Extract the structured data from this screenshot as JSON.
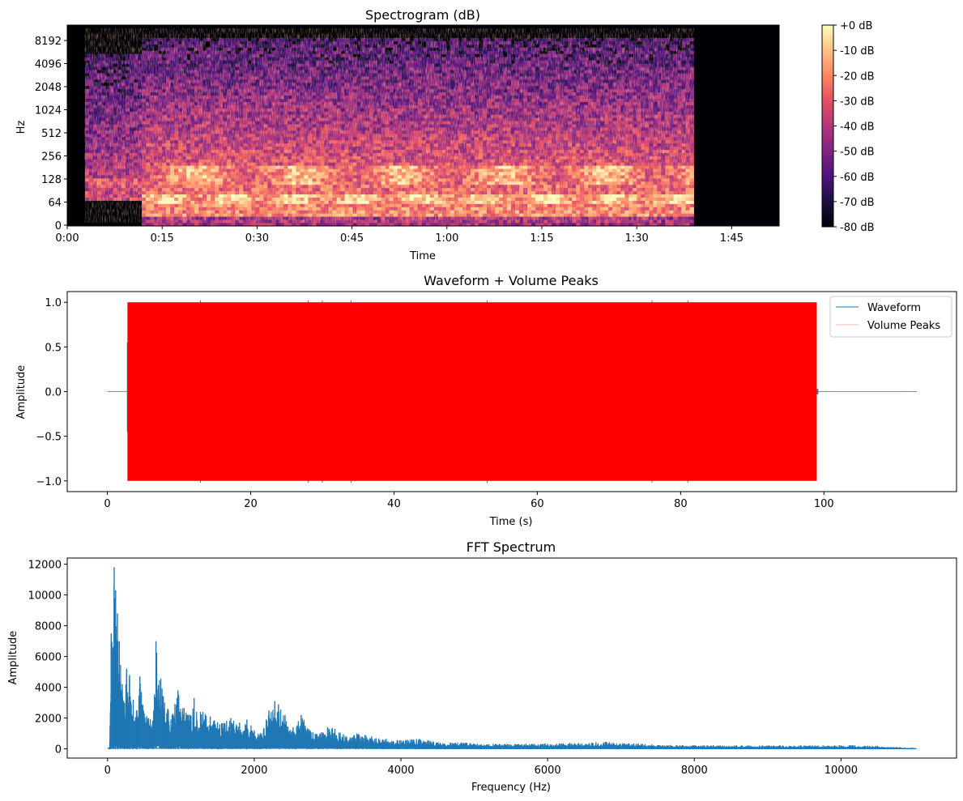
{
  "chart_data": [
    {
      "type": "heatmap",
      "title": "Spectrogram (dB)",
      "xlabel": "Time",
      "ylabel": "Hz",
      "x_ticks": [
        "0:00",
        "0:15",
        "0:30",
        "0:45",
        "1:00",
        "1:15",
        "1:30",
        "1:45"
      ],
      "x_tick_values": [
        0,
        15,
        30,
        45,
        60,
        75,
        90,
        105
      ],
      "xlim": [
        0,
        112.5
      ],
      "y_ticks": [
        "0",
        "64",
        "128",
        "256",
        "512",
        "1024",
        "2048",
        "4096",
        "8192"
      ],
      "y_scale": "symlog",
      "signal_start_s": 2.8,
      "signal_end_s": 99.0,
      "colorbar": {
        "ticks": [
          "+0 dB",
          "-10 dB",
          "-20 dB",
          "-30 dB",
          "-40 dB",
          "-50 dB",
          "-60 dB",
          "-70 dB",
          "-80 dB"
        ],
        "range": [
          -80,
          0
        ],
        "colormap": "magma"
      }
    },
    {
      "type": "line",
      "title": "Waveform + Volume Peaks",
      "xlabel": "Time (s)",
      "ylabel": "Amplitude",
      "xlim": [
        -5.6,
        118.5
      ],
      "ylim": [
        -1.12,
        1.12
      ],
      "x_ticks": [
        "0",
        "20",
        "40",
        "60",
        "80",
        "100"
      ],
      "x_tick_values": [
        0,
        20,
        40,
        60,
        80,
        100
      ],
      "y_ticks": [
        "1.0",
        "0.5",
        "0.0",
        "−0.5",
        "−1.0"
      ],
      "y_tick_values": [
        1.0,
        0.5,
        0.0,
        -0.5,
        -1.0
      ],
      "series": [
        {
          "name": "Waveform",
          "color": "#1f77b4",
          "x": [
            0,
            2.7,
            2.8,
            99.0,
            99.2,
            113.0
          ],
          "amplitude": [
            0.0,
            0.0,
            0.55,
            0.55,
            0.02,
            0.0
          ]
        },
        {
          "name": "Volume Peaks",
          "color": "#ff0000",
          "x_start": 2.8,
          "x_end": 99.0,
          "amplitude": 1.0
        }
      ],
      "legend": {
        "position": "upper-right",
        "labels": [
          "Waveform",
          "Volume Peaks"
        ]
      }
    },
    {
      "type": "line",
      "title": "FFT Spectrum",
      "xlabel": "Frequency (Hz)",
      "ylabel": "Amplitude",
      "xlim": [
        -550,
        11575
      ],
      "ylim": [
        -600,
        12400
      ],
      "x_ticks": [
        "0",
        "2000",
        "4000",
        "6000",
        "8000",
        "10000"
      ],
      "x_tick_values": [
        0,
        2000,
        4000,
        6000,
        8000,
        10000
      ],
      "y_ticks": [
        "0",
        "2000",
        "4000",
        "6000",
        "8000",
        "10000",
        "12000"
      ],
      "y_tick_values": [
        0,
        2000,
        4000,
        6000,
        8000,
        10000,
        12000
      ],
      "color": "#1f77b4",
      "peaks": [
        {
          "f": 30,
          "a": 400
        },
        {
          "f": 50,
          "a": 7500
        },
        {
          "f": 75,
          "a": 6600
        },
        {
          "f": 90,
          "a": 11800
        },
        {
          "f": 110,
          "a": 10300
        },
        {
          "f": 135,
          "a": 8800
        },
        {
          "f": 160,
          "a": 7000
        },
        {
          "f": 200,
          "a": 4200
        },
        {
          "f": 230,
          "a": 3000
        },
        {
          "f": 260,
          "a": 5200
        },
        {
          "f": 300,
          "a": 4800
        },
        {
          "f": 350,
          "a": 3200
        },
        {
          "f": 400,
          "a": 2500
        },
        {
          "f": 440,
          "a": 4700
        },
        {
          "f": 500,
          "a": 2300
        },
        {
          "f": 560,
          "a": 2000
        },
        {
          "f": 620,
          "a": 1800
        },
        {
          "f": 660,
          "a": 7000
        },
        {
          "f": 760,
          "a": 3400
        },
        {
          "f": 820,
          "a": 2600
        },
        {
          "f": 880,
          "a": 2200
        },
        {
          "f": 960,
          "a": 3800
        },
        {
          "f": 1080,
          "a": 2200
        },
        {
          "f": 1180,
          "a": 3300
        },
        {
          "f": 1300,
          "a": 2400
        },
        {
          "f": 1400,
          "a": 2100
        },
        {
          "f": 1530,
          "a": 1600
        },
        {
          "f": 1680,
          "a": 2000
        },
        {
          "f": 1800,
          "a": 1700
        },
        {
          "f": 1900,
          "a": 1900
        },
        {
          "f": 2000,
          "a": 1200
        },
        {
          "f": 2100,
          "a": 1000
        },
        {
          "f": 2200,
          "a": 2500
        },
        {
          "f": 2280,
          "a": 3100
        },
        {
          "f": 2330,
          "a": 2900
        },
        {
          "f": 2420,
          "a": 2200
        },
        {
          "f": 2530,
          "a": 1400
        },
        {
          "f": 2640,
          "a": 2200
        },
        {
          "f": 2760,
          "a": 1200
        },
        {
          "f": 2900,
          "a": 1000
        },
        {
          "f": 3000,
          "a": 1400
        },
        {
          "f": 3100,
          "a": 1300
        },
        {
          "f": 3260,
          "a": 800
        },
        {
          "f": 3400,
          "a": 1000
        },
        {
          "f": 3600,
          "a": 800
        },
        {
          "f": 3800,
          "a": 650
        },
        {
          "f": 4000,
          "a": 550
        },
        {
          "f": 4250,
          "a": 650
        },
        {
          "f": 4500,
          "a": 400
        },
        {
          "f": 4900,
          "a": 380
        },
        {
          "f": 5200,
          "a": 300
        },
        {
          "f": 6000,
          "a": 320
        },
        {
          "f": 6800,
          "a": 450
        },
        {
          "f": 7500,
          "a": 250
        },
        {
          "f": 8000,
          "a": 220
        },
        {
          "f": 9000,
          "a": 200
        },
        {
          "f": 9500,
          "a": 210
        },
        {
          "f": 10000,
          "a": 220
        },
        {
          "f": 10500,
          "a": 180
        },
        {
          "f": 10800,
          "a": 80
        },
        {
          "f": 11025,
          "a": 30
        }
      ]
    }
  ]
}
